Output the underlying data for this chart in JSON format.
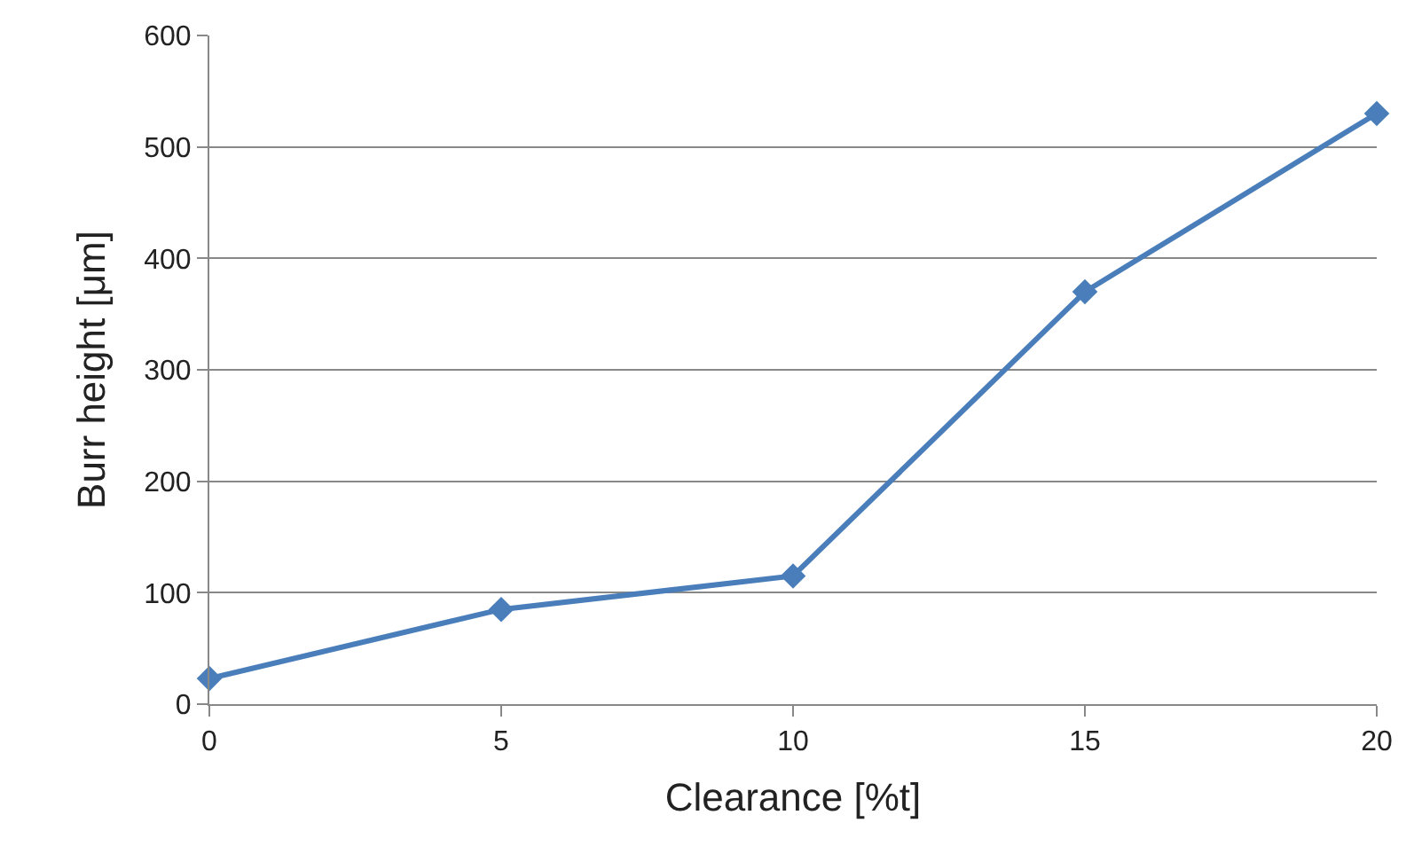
{
  "chart_data": {
    "type": "line",
    "xlabel": "Clearance [%t]",
    "ylabel": "Burr height [μm]",
    "x": [
      0,
      5,
      10,
      15,
      20
    ],
    "series": [
      {
        "color": "#4a7ebb",
        "values": [
          23,
          85,
          115,
          370,
          530
        ]
      }
    ],
    "xlim": [
      0,
      20
    ],
    "xticks": [
      0,
      5,
      10,
      15,
      20
    ],
    "ylim": [
      0,
      600
    ],
    "yticks": [
      0,
      100,
      200,
      300,
      400,
      500,
      600
    ],
    "grid": "y",
    "legend": false,
    "marker": "diamond",
    "line_style": "solid"
  }
}
